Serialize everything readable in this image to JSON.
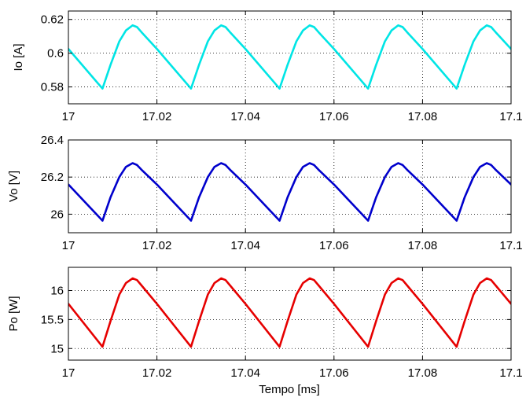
{
  "chart_data": [
    {
      "type": "line",
      "ylabel": "Io [A]",
      "xlabel": "",
      "xlim": [
        17,
        17.1
      ],
      "ylim": [
        0.57,
        0.625
      ],
      "xticks": [
        17,
        17.02,
        17.04,
        17.06,
        17.08,
        17.1
      ],
      "xtick_labels": [
        "17",
        "17.02",
        "17.04",
        "17.06",
        "17.08",
        "17.1"
      ],
      "yticks": [
        0.58,
        0.6,
        0.62
      ],
      "ytick_labels": [
        "0.58",
        "0.6",
        "0.62"
      ],
      "grid": true,
      "color": "#00e5e5",
      "series": [
        {
          "x": [
            17.0,
            17.0077,
            17.0095,
            17.0115,
            17.013,
            17.0145,
            17.0155,
            17.0165,
            17.02,
            17.0277,
            17.0295,
            17.0315,
            17.033,
            17.0345,
            17.0355,
            17.0365,
            17.04,
            17.0477,
            17.0495,
            17.0515,
            17.053,
            17.0545,
            17.0555,
            17.0565,
            17.06,
            17.0677,
            17.0695,
            17.0715,
            17.073,
            17.0745,
            17.0755,
            17.0765,
            17.08,
            17.0877,
            17.0895,
            17.0915,
            17.093,
            17.0945,
            17.0955,
            17.0965,
            17.1
          ],
          "y": [
            0.6025,
            0.579,
            0.593,
            0.607,
            0.6135,
            0.6165,
            0.6155,
            0.6125,
            0.6025,
            0.579,
            0.593,
            0.607,
            0.6135,
            0.6165,
            0.6155,
            0.6125,
            0.6025,
            0.579,
            0.593,
            0.607,
            0.6135,
            0.6165,
            0.6155,
            0.6125,
            0.6025,
            0.579,
            0.593,
            0.607,
            0.6135,
            0.6165,
            0.6155,
            0.6125,
            0.6025,
            0.579,
            0.593,
            0.607,
            0.6135,
            0.6165,
            0.6155,
            0.6125,
            0.6025
          ]
        }
      ]
    },
    {
      "type": "line",
      "ylabel": "Vo [V]",
      "xlabel": "",
      "xlim": [
        17,
        17.1
      ],
      "ylim": [
        25.9,
        26.4
      ],
      "xticks": [
        17,
        17.02,
        17.04,
        17.06,
        17.08,
        17.1
      ],
      "xtick_labels": [
        "17",
        "17.02",
        "17.04",
        "17.06",
        "17.08",
        "17.1"
      ],
      "yticks": [
        26.0,
        26.2,
        26.4
      ],
      "ytick_labels": [
        "26",
        "26.2",
        "26.4"
      ],
      "grid": true,
      "color": "#0000cc",
      "series": [
        {
          "x": [
            17.0,
            17.0077,
            17.0095,
            17.0115,
            17.013,
            17.0145,
            17.0155,
            17.0165,
            17.02,
            17.0277,
            17.0295,
            17.0315,
            17.033,
            17.0345,
            17.0355,
            17.0365,
            17.04,
            17.0477,
            17.0495,
            17.0515,
            17.053,
            17.0545,
            17.0555,
            17.0565,
            17.06,
            17.0677,
            17.0695,
            17.0715,
            17.073,
            17.0745,
            17.0755,
            17.0765,
            17.08,
            17.0877,
            17.0895,
            17.0915,
            17.093,
            17.0945,
            17.0955,
            17.0965,
            17.1
          ],
          "y": [
            26.16,
            25.965,
            26.09,
            26.2,
            26.255,
            26.275,
            26.265,
            26.24,
            26.16,
            25.965,
            26.09,
            26.2,
            26.255,
            26.275,
            26.265,
            26.24,
            26.16,
            25.965,
            26.09,
            26.2,
            26.255,
            26.275,
            26.265,
            26.24,
            26.16,
            25.965,
            26.09,
            26.2,
            26.255,
            26.275,
            26.265,
            26.24,
            26.16,
            25.965,
            26.09,
            26.2,
            26.255,
            26.275,
            26.265,
            26.24,
            26.16
          ]
        }
      ]
    },
    {
      "type": "line",
      "ylabel": "Po [W]",
      "xlabel": "Tempo [ms]",
      "xlim": [
        17,
        17.1
      ],
      "ylim": [
        14.8,
        16.4
      ],
      "xticks": [
        17,
        17.02,
        17.04,
        17.06,
        17.08,
        17.1
      ],
      "xtick_labels": [
        "17",
        "17.02",
        "17.04",
        "17.06",
        "17.08",
        "17.1"
      ],
      "yticks": [
        15.0,
        15.5,
        16.0
      ],
      "ytick_labels": [
        "15",
        "15.5",
        "16"
      ],
      "grid": true,
      "color": "#e60000",
      "series": [
        {
          "x": [
            17.0,
            17.0077,
            17.0095,
            17.0115,
            17.013,
            17.0145,
            17.0155,
            17.0165,
            17.02,
            17.0277,
            17.0295,
            17.0315,
            17.033,
            17.0345,
            17.0355,
            17.0365,
            17.04,
            17.0477,
            17.0495,
            17.0515,
            17.053,
            17.0545,
            17.0555,
            17.0565,
            17.06,
            17.0677,
            17.0695,
            17.0715,
            17.073,
            17.0745,
            17.0755,
            17.0765,
            17.08,
            17.0877,
            17.0895,
            17.0915,
            17.093,
            17.0945,
            17.0955,
            17.0965,
            17.1
          ],
          "y": [
            15.77,
            15.03,
            15.47,
            15.93,
            16.13,
            16.21,
            16.18,
            16.09,
            15.77,
            15.03,
            15.47,
            15.93,
            16.13,
            16.21,
            16.18,
            16.09,
            15.77,
            15.03,
            15.47,
            15.93,
            16.13,
            16.21,
            16.18,
            16.09,
            15.77,
            15.03,
            15.47,
            15.93,
            16.13,
            16.21,
            16.18,
            16.09,
            15.77,
            15.03,
            15.47,
            15.93,
            16.13,
            16.21,
            16.18,
            16.09,
            15.77
          ]
        }
      ]
    }
  ]
}
